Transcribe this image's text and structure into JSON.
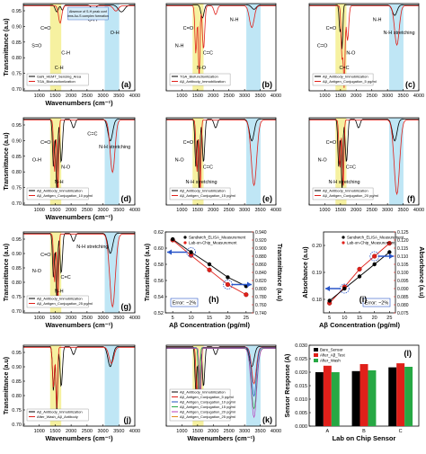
{
  "colors": {
    "black": "#000000",
    "red": "#e0201a",
    "blue": "#1f4fbf",
    "yellowBand": "#f6f1a0",
    "cyanBand": "#bfe6f5",
    "green": "#27a844",
    "arrow": "#2a56c9"
  },
  "chart_data": [
    {
      "type": "line",
      "panel": "(a)",
      "ylabel": "Transmittance (a.u)",
      "xlabel": "Wavenumbers (cm⁻¹)",
      "xticks": [
        "500",
        "1000",
        "1500",
        "2000",
        "2500",
        "3000",
        "3500",
        "4000"
      ],
      "yticks": [
        "0.95",
        "0.90",
        "0.85",
        "0.80",
        "0.75",
        "0.70"
      ],
      "ylim": [
        0.7,
        1.0
      ],
      "bands": [
        "yellow",
        "cyan"
      ],
      "legend": [
        "GaN_HEMT_Sensing_Area",
        "TGA_Biofunctionlization"
      ],
      "annotations": [
        "C=O",
        "S=O",
        "C-H",
        "C-H",
        "O-H",
        "O-H",
        "Absence of S-H peak confirms Au-S complex formation"
      ]
    },
    {
      "type": "line",
      "panel": "(b)",
      "xticks": [
        "500",
        "1000",
        "1500",
        "2000",
        "2500",
        "3000",
        "3500",
        "4000"
      ],
      "bands": [
        "yellow",
        "cyan"
      ],
      "legend": [
        "TGA_Biofunctionlization",
        "Aβ_Antibody_Immobilization"
      ],
      "annotations": [
        "C=O",
        "N-H",
        "C=C",
        "N-O",
        "N-H"
      ]
    },
    {
      "type": "line",
      "panel": "(c)",
      "xticks": [
        "500",
        "1000",
        "1500",
        "2000",
        "2500",
        "3000",
        "3500",
        "4000"
      ],
      "bands": [
        "yellow",
        "cyan"
      ],
      "legend": [
        "Aβ_Antibody_Immobilization",
        "Aβ_Antigen_Conjugation_5 pg/ml"
      ],
      "annotations": [
        "C=O",
        "C=O",
        "N-O",
        "C=C",
        "N-H",
        "N-H stretching"
      ]
    },
    {
      "type": "line",
      "panel": "(d)",
      "ylabel": "Transmittance (a.u)",
      "xlabel": "Wavenumbers (cm⁻¹)",
      "xticks": [
        "500",
        "1000",
        "1500",
        "2000",
        "2500",
        "3000",
        "3500",
        "4000"
      ],
      "yticks": [
        "0.95",
        "0.90",
        "0.85",
        "0.80",
        "0.75",
        "0.70"
      ],
      "bands": [
        "yellow",
        "cyan"
      ],
      "legend": [
        "Aβ_Antibody_Immobilization",
        "Aβ_Antigen_Conjugation_10 pg/ml"
      ],
      "annotations": [
        "C=O",
        "O-H",
        "N-O",
        "N-H",
        "C=C",
        "N-H stretching"
      ]
    },
    {
      "type": "line",
      "panel": "(e)",
      "xticks": [
        "500",
        "1000",
        "1500",
        "2000",
        "2500",
        "3000",
        "3500",
        "4000"
      ],
      "bands": [
        "yellow",
        "cyan"
      ],
      "legend": [
        "Aβ_Antibody_Immobilization",
        "Aβ_Antigen_Conjugation_15 pg/ml"
      ],
      "annotations": [
        "C=O",
        "N-O",
        "C=C",
        "N-H stretching"
      ]
    },
    {
      "type": "line",
      "panel": "(f)",
      "xticks": [
        "500",
        "1000",
        "1500",
        "2000",
        "2500",
        "3000",
        "3500",
        "4000"
      ],
      "bands": [
        "yellow",
        "cyan"
      ],
      "legend": [
        "Aβ_Antibody_Immobilization",
        "Aβ_Antigen_Conjugation_20 pg/ml"
      ],
      "annotations": [
        "C=O",
        "N-O",
        "C=C",
        "N-H stretching"
      ]
    },
    {
      "type": "line",
      "panel": "(g)",
      "ylabel": "Transmittance (a.u)",
      "xlabel": "Wavenumbers (cm⁻¹)",
      "xticks": [
        "500",
        "1000",
        "1500",
        "2000",
        "2500",
        "3000",
        "3500",
        "4000"
      ],
      "yticks": [
        "0.95",
        "0.90",
        "0.85",
        "0.80",
        "0.75",
        "0.70"
      ],
      "bands": [
        "yellow",
        "cyan"
      ],
      "legend": [
        "Aβ_Antibody_Immobilization",
        "Aβ_Antigen_Conjugation_25 pg/ml"
      ],
      "annotations": [
        "C=O",
        "N-O",
        "C=C",
        "N-H",
        "N-H stretching"
      ]
    },
    {
      "type": "line",
      "panel": "(h)",
      "xlabel": "Aβ Concentration (pg/ml)",
      "ylabel": "Transmittance (a.u)",
      "y2label": "Transmittance (a.u)",
      "legend": [
        "Sandwich_ELISA_Measurement",
        "Lab-on-Chip_Measurement"
      ],
      "error_note": "Error: ~2%",
      "x": [
        5,
        10,
        15,
        20,
        25
      ],
      "xticks": [
        "5",
        "10",
        "15",
        "20",
        "25"
      ],
      "yticks": [
        "0.62",
        "0.60",
        "0.58",
        "0.56",
        "0.54",
        "0.52"
      ],
      "ylim": [
        0.52,
        0.62
      ],
      "y2ticks": [
        "0.940",
        "0.920",
        "0.900",
        "0.880",
        "0.860",
        "0.840",
        "0.820",
        "0.800",
        "0.780",
        "0.760",
        "0.740"
      ],
      "y2lim": [
        0.74,
        0.94
      ],
      "series": [
        {
          "name": "Sandwich_ELISA_Measurement",
          "axis": "left",
          "values": [
            0.611,
            0.595,
            0.58,
            0.564,
            0.553
          ]
        },
        {
          "name": "Lab-on-Chip_Measurement",
          "axis": "right",
          "values": [
            0.92,
            0.882,
            0.846,
            0.81,
            0.785
          ]
        }
      ]
    },
    {
      "type": "line",
      "panel": "(i)",
      "xlabel": "Aβ Concentration (pg/ml)",
      "ylabel": "Absorbance (a.u)",
      "y2label": "Absorbance (a.u)",
      "legend": [
        "Sandwich_ELISA_Measurement",
        "Lab-on-Chip_Measurement"
      ],
      "error_note": "Error: ~2%",
      "x": [
        5,
        10,
        15,
        20,
        25
      ],
      "xticks": [
        "5",
        "10",
        "15",
        "20",
        "25"
      ],
      "yticks": [
        "0.20",
        "0.19",
        "0.18"
      ],
      "ylim": [
        0.175,
        0.205
      ],
      "y2ticks": [
        "0.125",
        "0.120",
        "0.115",
        "0.110",
        "0.105",
        "0.100",
        "0.095",
        "0.090",
        "0.085",
        "0.080",
        "0.075"
      ],
      "y2lim": [
        0.075,
        0.125
      ],
      "series": [
        {
          "name": "Sandwich_ELISA_Measurement",
          "axis": "left",
          "values": [
            0.1795,
            0.184,
            0.1885,
            0.193,
            0.1975
          ]
        },
        {
          "name": "Lab-on-Chip_Measurement",
          "axis": "right",
          "values": [
            0.081,
            0.091,
            0.102,
            0.11,
            0.118
          ]
        }
      ]
    },
    {
      "type": "line",
      "panel": "(j)",
      "ylabel": "Transmittance (a.u)",
      "xlabel": "Wavenumbers (cm⁻¹)",
      "xticks": [
        "500",
        "1000",
        "1500",
        "2000",
        "2500",
        "3000",
        "3500",
        "4000"
      ],
      "yticks": [
        "0.95",
        "0.90",
        "0.85",
        "0.80",
        "0.75",
        "0.70"
      ],
      "bands": [
        "yellow",
        "cyan"
      ],
      "legend": [
        "Aβ_Antibody_Immobilization",
        "After_Wash_Aβ_Antibody"
      ]
    },
    {
      "type": "line",
      "panel": "(k)",
      "xlabel": "Wavenumbers (cm⁻¹)",
      "xticks": [
        "500",
        "1000",
        "1500",
        "2000",
        "2500",
        "3000",
        "3500",
        "4000"
      ],
      "bands": [
        "yellow",
        "cyan"
      ],
      "legend": [
        "Aβ_Antibody_Immobilization",
        "Aβ_Antigen_Conjugation_5 pg/ml",
        "Aβ_Antigen_Conjugation_10 pg/ml",
        "Aβ_Antigen_Conjugation_15 pg/ml",
        "Aβ_Antigen_Conjugation_20 pg/ml",
        "Aβ_Antigen_Conjugation_25 pg/ml"
      ]
    },
    {
      "type": "bar",
      "panel": "(l)",
      "xlabel": "Lab on Chip Sensor",
      "ylabel": "Sensor Response (A)",
      "categories": [
        "A",
        "B",
        "C"
      ],
      "yticks": [
        "0.030",
        "0.025",
        "0.020",
        "0.015",
        "0.010",
        "0.005",
        "0.000"
      ],
      "ylim": [
        0,
        0.03
      ],
      "series": [
        {
          "name": "Bare_Sensor",
          "values": [
            0.02,
            0.0204,
            0.0218
          ]
        },
        {
          "name": "After_Aβ_Test",
          "values": [
            0.0224,
            0.023,
            0.0233
          ]
        },
        {
          "name": "After_Wash",
          "values": [
            0.02,
            0.0207,
            0.022
          ]
        }
      ]
    }
  ]
}
